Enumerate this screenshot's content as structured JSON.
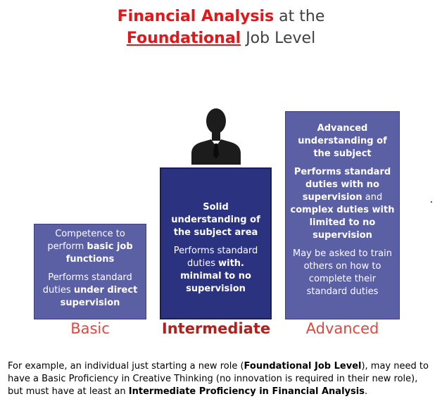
{
  "title": {
    "line1_red": "Financial Analysis",
    "line1_rest": " at the",
    "line2_red": "Foundational",
    "line2_rest": " Job Level"
  },
  "levels": {
    "basic": {
      "label": "Basic",
      "p1": [
        "Competence to perform ",
        "basic job functions"
      ],
      "p2": [
        "Performs standard duties ",
        "under direct supervision"
      ]
    },
    "intermediate": {
      "label": "Intermediate",
      "p1": "Solid understanding of the subject area",
      "p2": [
        "Performs standard duties ",
        "with. minimal to no supervision"
      ]
    },
    "advanced": {
      "label": "Advanced",
      "p1": "Advanced understanding of the subject",
      "p2": [
        "Performs standard duties with no supervision",
        " and ",
        "complex duties with limited to no supervision"
      ],
      "p3": "May be asked to train others on how to complete their standard duties"
    }
  },
  "caption": {
    "t1": "For example, an individual just starting a new role (",
    "b1": "Foundational Job Level",
    "t2": "), may need to have a Basic Proficiency in Creative Thinking (no innovation is required in their new role), but must have at least an ",
    "b2": "Intermediate Proficiency in Financial Analysis",
    "t3": "."
  },
  "colors": {
    "title_red": "#e3161a",
    "box_light": "#5b5fa4",
    "box_dark": "#2b3280",
    "label_red": "#e2463f"
  },
  "icons": [
    "person-icon"
  ]
}
